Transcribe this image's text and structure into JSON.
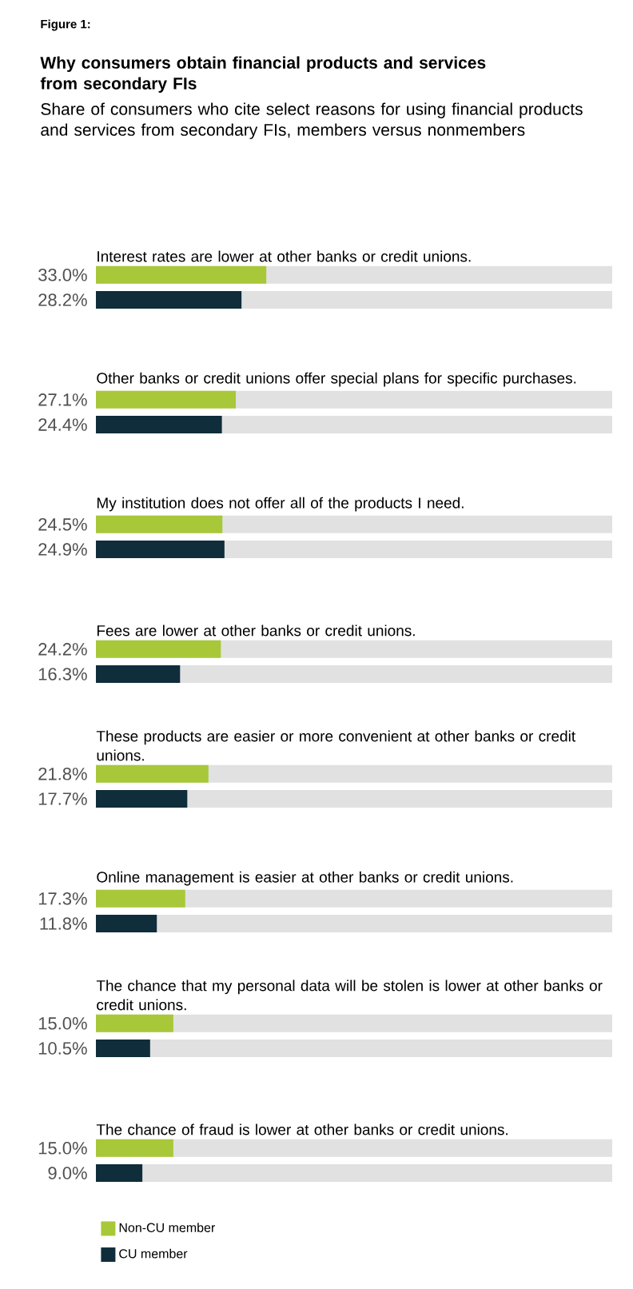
{
  "chart_data": {
    "type": "bar",
    "orientation": "horizontal",
    "title": "Why consumers obtain financial products and services from secondary FIs",
    "subtitle": "Share of consumers who cite select reasons for using financial products and services from secondary FIs, members versus nonmembers",
    "annotations": [
      "Figure 1:"
    ],
    "categories": [
      "Interest rates are lower at other banks or credit unions.",
      "Other banks or credit unions offer special plans for specific purchases.",
      "My institution does not offer all of the products I need.",
      "Fees are lower at other banks or credit unions.",
      "These products are easier or more convenient at other banks or credit unions.",
      "Online management is easier at other banks or credit unions.",
      "The chance that my personal data will be stolen is lower at other banks or credit unions.",
      "The chance of fraud is lower at other banks or credit unions."
    ],
    "xlim": [
      0,
      100
    ],
    "series": [
      {
        "name": "Non-CU member",
        "color": "#a8c839",
        "values": [
          33.0,
          27.1,
          24.5,
          24.2,
          21.8,
          17.3,
          15.0,
          15.0
        ],
        "value_labels": [
          "33.0%",
          "27.1%",
          "24.5%",
          "24.2%",
          "21.8%",
          "17.3%",
          "15.0%",
          "15.0%"
        ]
      },
      {
        "name": "CU member",
        "color": "#0f2d3b",
        "values": [
          28.2,
          24.4,
          24.9,
          16.3,
          17.7,
          11.8,
          10.5,
          9.0
        ],
        "value_labels": [
          "28.2%",
          "24.4%",
          "24.9%",
          "16.3%",
          "17.7%",
          "11.8%",
          "10.5%",
          "9.0%"
        ]
      }
    ],
    "legend": "bottom left"
  }
}
